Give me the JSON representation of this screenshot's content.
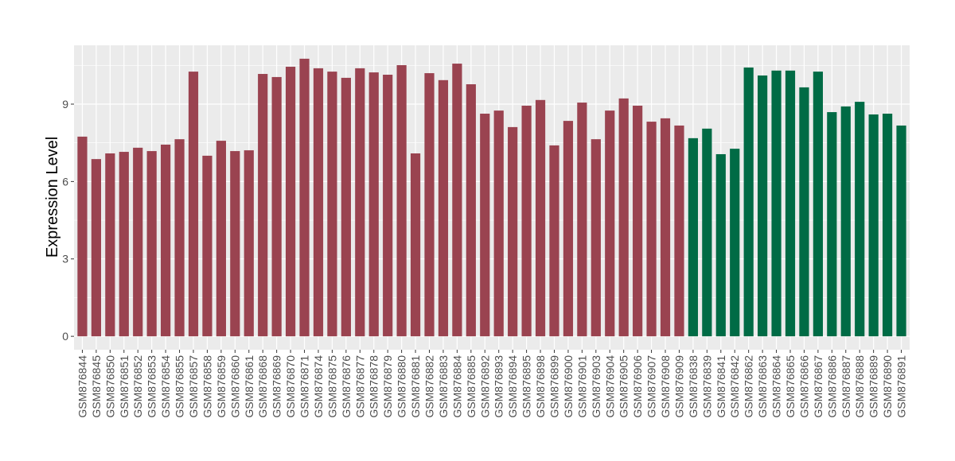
{
  "chart_data": {
    "type": "bar",
    "title": "",
    "xlabel": "",
    "ylabel": "Expression Level",
    "ylim": [
      -0.52,
      11.28
    ],
    "yticks": [
      0,
      3,
      6,
      9
    ],
    "grid": true,
    "legend": "none",
    "colors": {
      "group1": "#9A4350",
      "group2": "#006B45",
      "panel": "#EBEBEB",
      "grid": "#FFFFFF"
    },
    "categories": [
      "GSM876844",
      "GSM876845",
      "GSM876850",
      "GSM876851",
      "GSM876852",
      "GSM876853",
      "GSM876854",
      "GSM876855",
      "GSM876857",
      "GSM876858",
      "GSM876859",
      "GSM876860",
      "GSM876861",
      "GSM876868",
      "GSM876869",
      "GSM876870",
      "GSM876871",
      "GSM876874",
      "GSM876875",
      "GSM876876",
      "GSM876877",
      "GSM876878",
      "GSM876879",
      "GSM876880",
      "GSM876881",
      "GSM876882",
      "GSM876883",
      "GSM876884",
      "GSM876885",
      "GSM876892",
      "GSM876893",
      "GSM876894",
      "GSM876895",
      "GSM876898",
      "GSM876899",
      "GSM876900",
      "GSM876901",
      "GSM876903",
      "GSM876904",
      "GSM876905",
      "GSM876906",
      "GSM876907",
      "GSM876908",
      "GSM876909",
      "GSM876838",
      "GSM876839",
      "GSM876841",
      "GSM876842",
      "GSM876862",
      "GSM876863",
      "GSM876864",
      "GSM876865",
      "GSM876866",
      "GSM876867",
      "GSM876886",
      "GSM876887",
      "GSM876888",
      "GSM876889",
      "GSM876890",
      "GSM876891"
    ],
    "values": [
      7.74,
      6.87,
      7.09,
      7.15,
      7.31,
      7.18,
      7.43,
      7.64,
      10.26,
      7.0,
      7.58,
      7.18,
      7.21,
      10.17,
      10.05,
      10.45,
      10.76,
      10.39,
      10.26,
      10.02,
      10.39,
      10.23,
      10.14,
      10.51,
      7.09,
      10.2,
      9.93,
      10.57,
      9.77,
      8.63,
      8.75,
      8.11,
      8.94,
      9.16,
      7.4,
      8.35,
      9.06,
      7.64,
      8.75,
      9.22,
      8.94,
      8.32,
      8.45,
      8.17,
      7.68,
      8.05,
      7.06,
      7.27,
      10.42,
      10.11,
      10.3,
      10.3,
      9.65,
      10.26,
      8.69,
      8.91,
      9.09,
      8.6,
      8.63,
      8.17
    ],
    "groups": [
      "group1",
      "group1",
      "group1",
      "group1",
      "group1",
      "group1",
      "group1",
      "group1",
      "group1",
      "group1",
      "group1",
      "group1",
      "group1",
      "group1",
      "group1",
      "group1",
      "group1",
      "group1",
      "group1",
      "group1",
      "group1",
      "group1",
      "group1",
      "group1",
      "group1",
      "group1",
      "group1",
      "group1",
      "group1",
      "group1",
      "group1",
      "group1",
      "group1",
      "group1",
      "group1",
      "group1",
      "group1",
      "group1",
      "group1",
      "group1",
      "group1",
      "group1",
      "group1",
      "group1",
      "group2",
      "group2",
      "group2",
      "group2",
      "group2",
      "group2",
      "group2",
      "group2",
      "group2",
      "group2",
      "group2",
      "group2",
      "group2",
      "group2",
      "group2",
      "group2"
    ]
  }
}
